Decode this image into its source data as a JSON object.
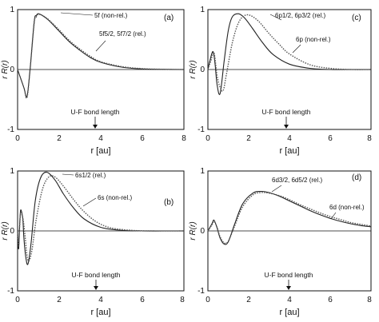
{
  "chart_data": [
    {
      "type": "line",
      "panel_label": "(a)",
      "xlabel": "r [au]",
      "ylabel": "r R(r)",
      "xlim": [
        0,
        8
      ],
      "ylim": [
        -1,
        1
      ],
      "x_ticks": [
        "0",
        "2",
        "4",
        "6",
        "8"
      ],
      "y_ticks": [
        "-1",
        "0",
        "1"
      ],
      "zero_line": true,
      "series": [
        {
          "name": "5f (non-rel.)",
          "color": "#222222",
          "dash": "solid",
          "x": [
            0,
            0.3,
            0.45,
            0.6,
            0.8,
            0.9,
            1.0,
            1.2,
            1.5,
            2.0,
            2.5,
            3.0,
            3.5,
            4.0,
            5.0,
            6.0,
            7.0,
            8.0
          ],
          "y": [
            0,
            -0.3,
            -0.45,
            0.0,
            0.8,
            0.9,
            0.93,
            0.9,
            0.82,
            0.64,
            0.46,
            0.32,
            0.2,
            0.12,
            0.04,
            0.01,
            0.003,
            0.0
          ]
        },
        {
          "name": "5f5/2, 5f7/2 (rel.)",
          "color": "#555555",
          "dash": "dotted",
          "x": [
            0,
            0.3,
            0.45,
            0.6,
            0.8,
            0.9,
            1.0,
            1.2,
            1.5,
            2.0,
            2.5,
            3.0,
            3.5,
            4.0,
            5.0,
            6.0,
            7.0,
            8.0
          ],
          "y": [
            0,
            -0.3,
            -0.47,
            0.0,
            0.78,
            0.88,
            0.92,
            0.9,
            0.83,
            0.66,
            0.48,
            0.34,
            0.22,
            0.13,
            0.05,
            0.015,
            0.004,
            0.0
          ]
        }
      ],
      "annotations": [
        "5f (non-rel.)",
        "5f5/2, 5f7/2 (rel.)"
      ],
      "marker_label": "U-F bond length",
      "marker_x": 3.8
    },
    {
      "type": "line",
      "panel_label": "(c)",
      "xlabel": "r [au]",
      "ylabel": "r R(r)",
      "xlim": [
        0,
        8
      ],
      "ylim": [
        -1,
        1
      ],
      "x_ticks": [
        "0",
        "2",
        "4",
        "6",
        "8"
      ],
      "y_ticks": [
        "-1",
        "0",
        "1"
      ],
      "zero_line": true,
      "series": [
        {
          "name": "6p1/2, 6p3/2 (rel.)",
          "color": "#222222",
          "dash": "solid",
          "x": [
            0,
            0.1,
            0.25,
            0.35,
            0.45,
            0.6,
            0.8,
            1.0,
            1.2,
            1.5,
            1.8,
            2.2,
            2.7,
            3.2,
            4.0,
            5.0,
            6.0,
            7.0,
            8.0
          ],
          "y": [
            0,
            0.15,
            0.3,
            0.1,
            -0.25,
            -0.4,
            0.15,
            0.65,
            0.88,
            0.93,
            0.86,
            0.68,
            0.44,
            0.25,
            0.09,
            0.02,
            0.0,
            0.0,
            0.0
          ]
        },
        {
          "name": "6p (non-rel.)",
          "color": "#555555",
          "dash": "dotted",
          "x": [
            0,
            0.15,
            0.3,
            0.45,
            0.6,
            0.75,
            0.9,
            1.2,
            1.5,
            1.8,
            2.1,
            2.5,
            3.0,
            3.5,
            4.0,
            5.0,
            6.0,
            7.0,
            8.0
          ],
          "y": [
            0,
            0.15,
            0.28,
            -0.1,
            -0.3,
            -0.35,
            -0.1,
            0.45,
            0.78,
            0.9,
            0.9,
            0.8,
            0.6,
            0.42,
            0.26,
            0.08,
            0.02,
            0.0,
            0.0
          ]
        }
      ],
      "annotations": [
        "6p1/2, 6p3/2 (rel.)",
        "6p (non-rel.)"
      ],
      "marker_label": "U-F bond length",
      "marker_x": 3.85
    },
    {
      "type": "line",
      "panel_label": "(b)",
      "xlabel": "r [au]",
      "ylabel": "r R(r)",
      "xlim": [
        0,
        8
      ],
      "ylim": [
        -1,
        1
      ],
      "x_ticks": [
        "0",
        "2",
        "4",
        "6",
        "8"
      ],
      "y_ticks": [
        "-1",
        "0",
        "1"
      ],
      "zero_line": true,
      "series": [
        {
          "name": "6s1/2 (rel.)",
          "color": "#222222",
          "dash": "solid",
          "x": [
            0,
            0.05,
            0.1,
            0.15,
            0.25,
            0.3,
            0.4,
            0.5,
            0.65,
            0.85,
            1.1,
            1.4,
            1.8,
            2.2,
            2.7,
            3.2,
            4.0,
            5.0,
            6.0,
            7.0,
            8.0
          ],
          "y": [
            0,
            -0.3,
            0.1,
            0.35,
            0.2,
            -0.1,
            -0.45,
            -0.55,
            -0.2,
            0.5,
            0.88,
            0.98,
            0.85,
            0.62,
            0.38,
            0.2,
            0.06,
            0.01,
            0.0,
            0.0,
            0.0
          ]
        },
        {
          "name": "6s (non-rel.)",
          "color": "#555555",
          "dash": "dotted",
          "x": [
            0,
            0.05,
            0.1,
            0.15,
            0.25,
            0.35,
            0.45,
            0.55,
            0.7,
            0.9,
            1.2,
            1.5,
            1.8,
            2.2,
            2.7,
            3.2,
            3.8,
            4.5,
            5.5,
            6.5,
            8.0
          ],
          "y": [
            0,
            -0.25,
            0.08,
            0.3,
            0.22,
            -0.05,
            -0.4,
            -0.5,
            -0.3,
            0.2,
            0.7,
            0.9,
            0.9,
            0.75,
            0.52,
            0.32,
            0.15,
            0.05,
            0.01,
            0.0,
            0.0
          ]
        }
      ],
      "annotations": [
        "6s1/2 (rel.)",
        "6s (non-rel.)"
      ],
      "marker_label": "U-F bond length",
      "marker_x": 3.7
    },
    {
      "type": "line",
      "panel_label": "(d)",
      "xlabel": "r [au]",
      "ylabel": "r R(r)",
      "xlim": [
        0,
        8
      ],
      "ylim": [
        -1,
        1
      ],
      "x_ticks": [
        "0",
        "2",
        "4",
        "6",
        "8"
      ],
      "y_ticks": [
        "-1",
        "0",
        "1"
      ],
      "zero_line": true,
      "series": [
        {
          "name": "6d3/2, 6d5/2 (rel.)",
          "color": "#222222",
          "dash": "solid",
          "x": [
            0,
            0.2,
            0.3,
            0.45,
            0.6,
            0.8,
            1.0,
            1.3,
            1.7,
            2.2,
            2.6,
            3.0,
            3.5,
            4.0,
            4.5,
            5.0,
            5.5,
            6.0,
            6.5,
            7.0,
            7.5,
            8.0
          ],
          "y": [
            0,
            0.12,
            0.18,
            0.05,
            -0.12,
            -0.22,
            -0.18,
            0.1,
            0.45,
            0.63,
            0.66,
            0.64,
            0.58,
            0.5,
            0.42,
            0.34,
            0.27,
            0.21,
            0.16,
            0.12,
            0.09,
            0.07
          ]
        },
        {
          "name": "6d (non-rel.)",
          "color": "#555555",
          "dash": "dotted",
          "x": [
            0,
            0.2,
            0.3,
            0.45,
            0.6,
            0.8,
            1.0,
            1.3,
            1.7,
            2.2,
            2.6,
            3.0,
            3.5,
            4.0,
            4.5,
            5.0,
            5.5,
            6.0,
            6.5,
            7.0,
            7.5,
            8.0
          ],
          "y": [
            0,
            0.1,
            0.16,
            0.06,
            -0.1,
            -0.2,
            -0.17,
            0.07,
            0.4,
            0.6,
            0.64,
            0.63,
            0.59,
            0.52,
            0.44,
            0.37,
            0.3,
            0.24,
            0.19,
            0.14,
            0.11,
            0.08
          ]
        }
      ],
      "annotations": [
        "6d3/2, 6d5/2 (rel.)",
        "6d (non-rel.)"
      ],
      "marker_label": "U-F bond length",
      "marker_x": 3.95
    }
  ]
}
